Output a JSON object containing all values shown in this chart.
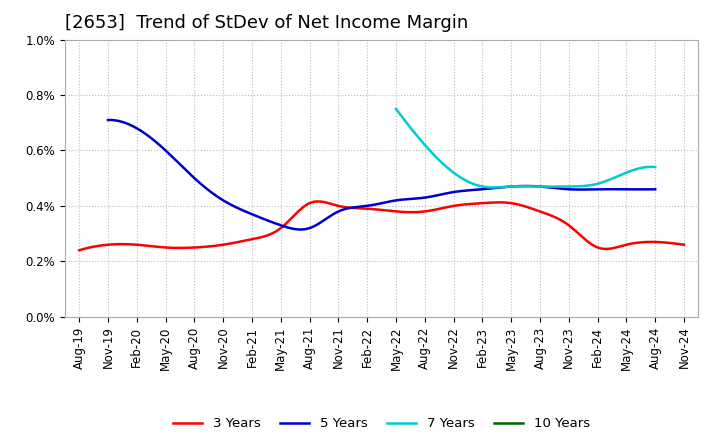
{
  "title": "[2653]  Trend of StDev of Net Income Margin",
  "ylim": [
    0.0,
    0.01
  ],
  "yticks": [
    0.0,
    0.002,
    0.004,
    0.006,
    0.008,
    0.01
  ],
  "ytick_labels": [
    "0.0%",
    "0.2%",
    "0.4%",
    "0.6%",
    "0.8%",
    "1.0%"
  ],
  "x_labels": [
    "Aug-19",
    "Nov-19",
    "Feb-20",
    "May-20",
    "Aug-20",
    "Nov-20",
    "Feb-21",
    "May-21",
    "Aug-21",
    "Nov-21",
    "Feb-22",
    "May-22",
    "Aug-22",
    "Nov-22",
    "Feb-23",
    "May-23",
    "Aug-23",
    "Nov-23",
    "Feb-24",
    "May-24",
    "Aug-24",
    "Nov-24"
  ],
  "series_3y": [
    0.0024,
    0.0026,
    0.0026,
    0.0025,
    0.0025,
    0.0026,
    0.0028,
    0.0032,
    0.0041,
    0.004,
    0.0039,
    0.0038,
    0.0038,
    0.004,
    0.0041,
    0.0041,
    0.0038,
    0.0033,
    0.0025,
    0.0026,
    0.0027,
    0.0026
  ],
  "series_5y": [
    null,
    0.0071,
    0.0068,
    0.006,
    0.005,
    0.0042,
    0.0037,
    0.0033,
    0.0032,
    0.0038,
    0.004,
    0.0042,
    0.0043,
    0.0045,
    0.0046,
    0.0047,
    0.0047,
    0.0046,
    0.0046,
    0.0046,
    0.0046,
    null
  ],
  "series_7y": [
    null,
    null,
    null,
    null,
    null,
    null,
    null,
    null,
    null,
    null,
    null,
    0.0075,
    0.0062,
    0.0052,
    0.0047,
    0.0047,
    0.0047,
    0.0047,
    0.0048,
    0.0052,
    0.0054,
    null
  ],
  "series_10y": [],
  "color_3y": "#ff0000",
  "color_5y": "#0000cc",
  "color_7y": "#00cccc",
  "color_10y": "#006600",
  "background_color": "#ffffff",
  "grid_color": "#aaaaaa",
  "title_fontsize": 13,
  "tick_fontsize": 8.5,
  "legend_labels": [
    "3 Years",
    "5 Years",
    "7 Years",
    "10 Years"
  ]
}
